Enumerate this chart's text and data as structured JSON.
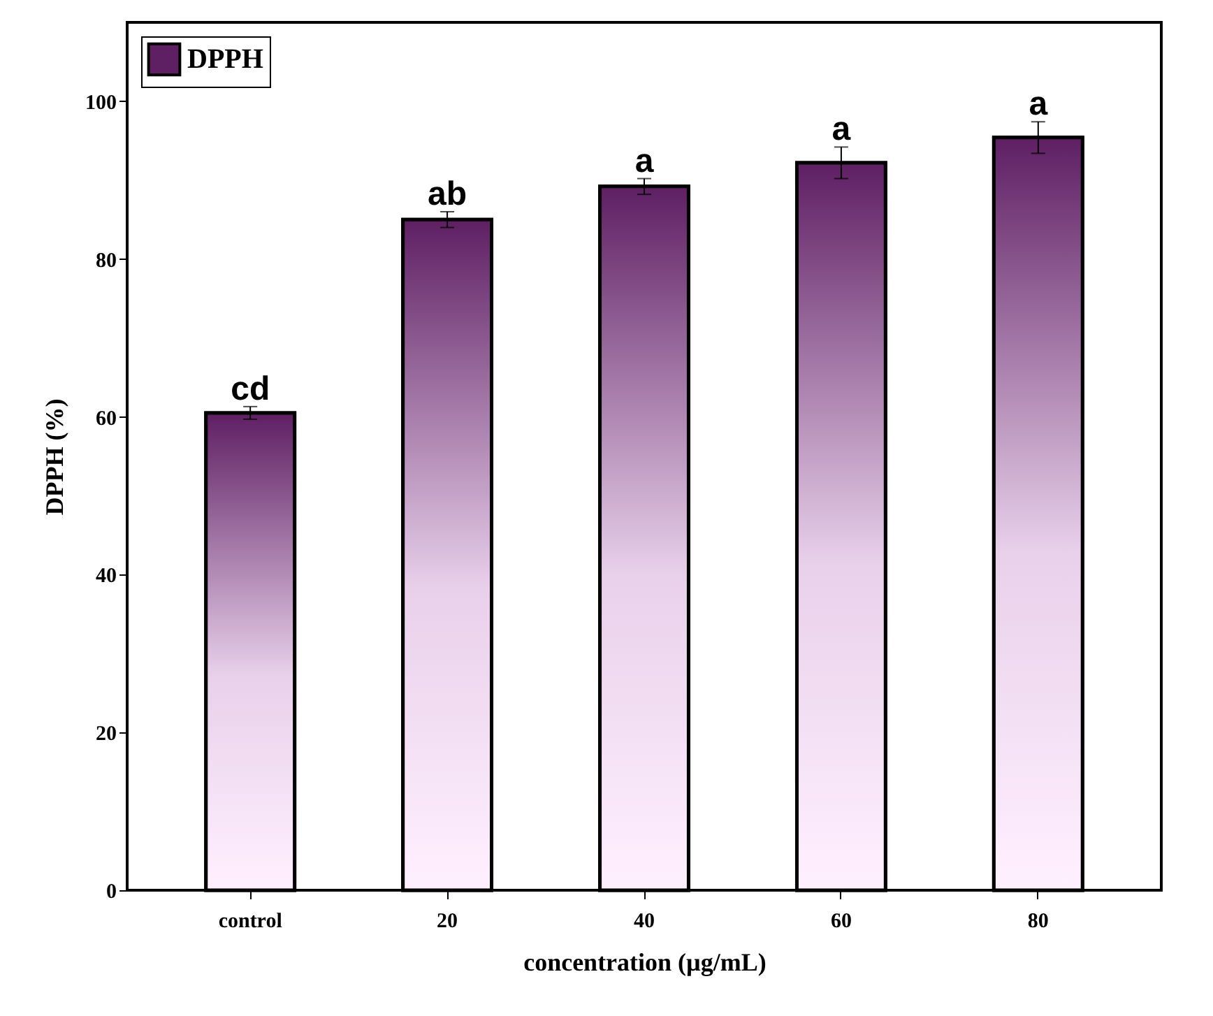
{
  "chart_data": {
    "type": "bar",
    "xlabel": "concentration (µg/mL)",
    "ylabel": "DPPH (%)",
    "categories": [
      "control",
      "20",
      "40",
      "60",
      "80"
    ],
    "series": [
      {
        "name": "DPPH",
        "color": "#5e1f63",
        "values": [
          60.5,
          85.0,
          89.2,
          92.2,
          95.4
        ],
        "errors": [
          0.8,
          1.0,
          1.0,
          2.0,
          2.0
        ]
      }
    ],
    "ylim": [
      0,
      110
    ],
    "yticks": [
      0,
      20,
      40,
      60,
      80,
      100
    ],
    "grid": false,
    "legend": "top left",
    "annotations": [
      {
        "text": "cd",
        "x": "control",
        "y": 61.3
      },
      {
        "text": "ab",
        "x": "20",
        "y": 86.0
      },
      {
        "text": "a",
        "x": "40",
        "y": 90.2
      },
      {
        "text": "a",
        "x": "60",
        "y": 94.2
      },
      {
        "text": "a",
        "x": "80",
        "y": 97.4
      }
    ]
  }
}
